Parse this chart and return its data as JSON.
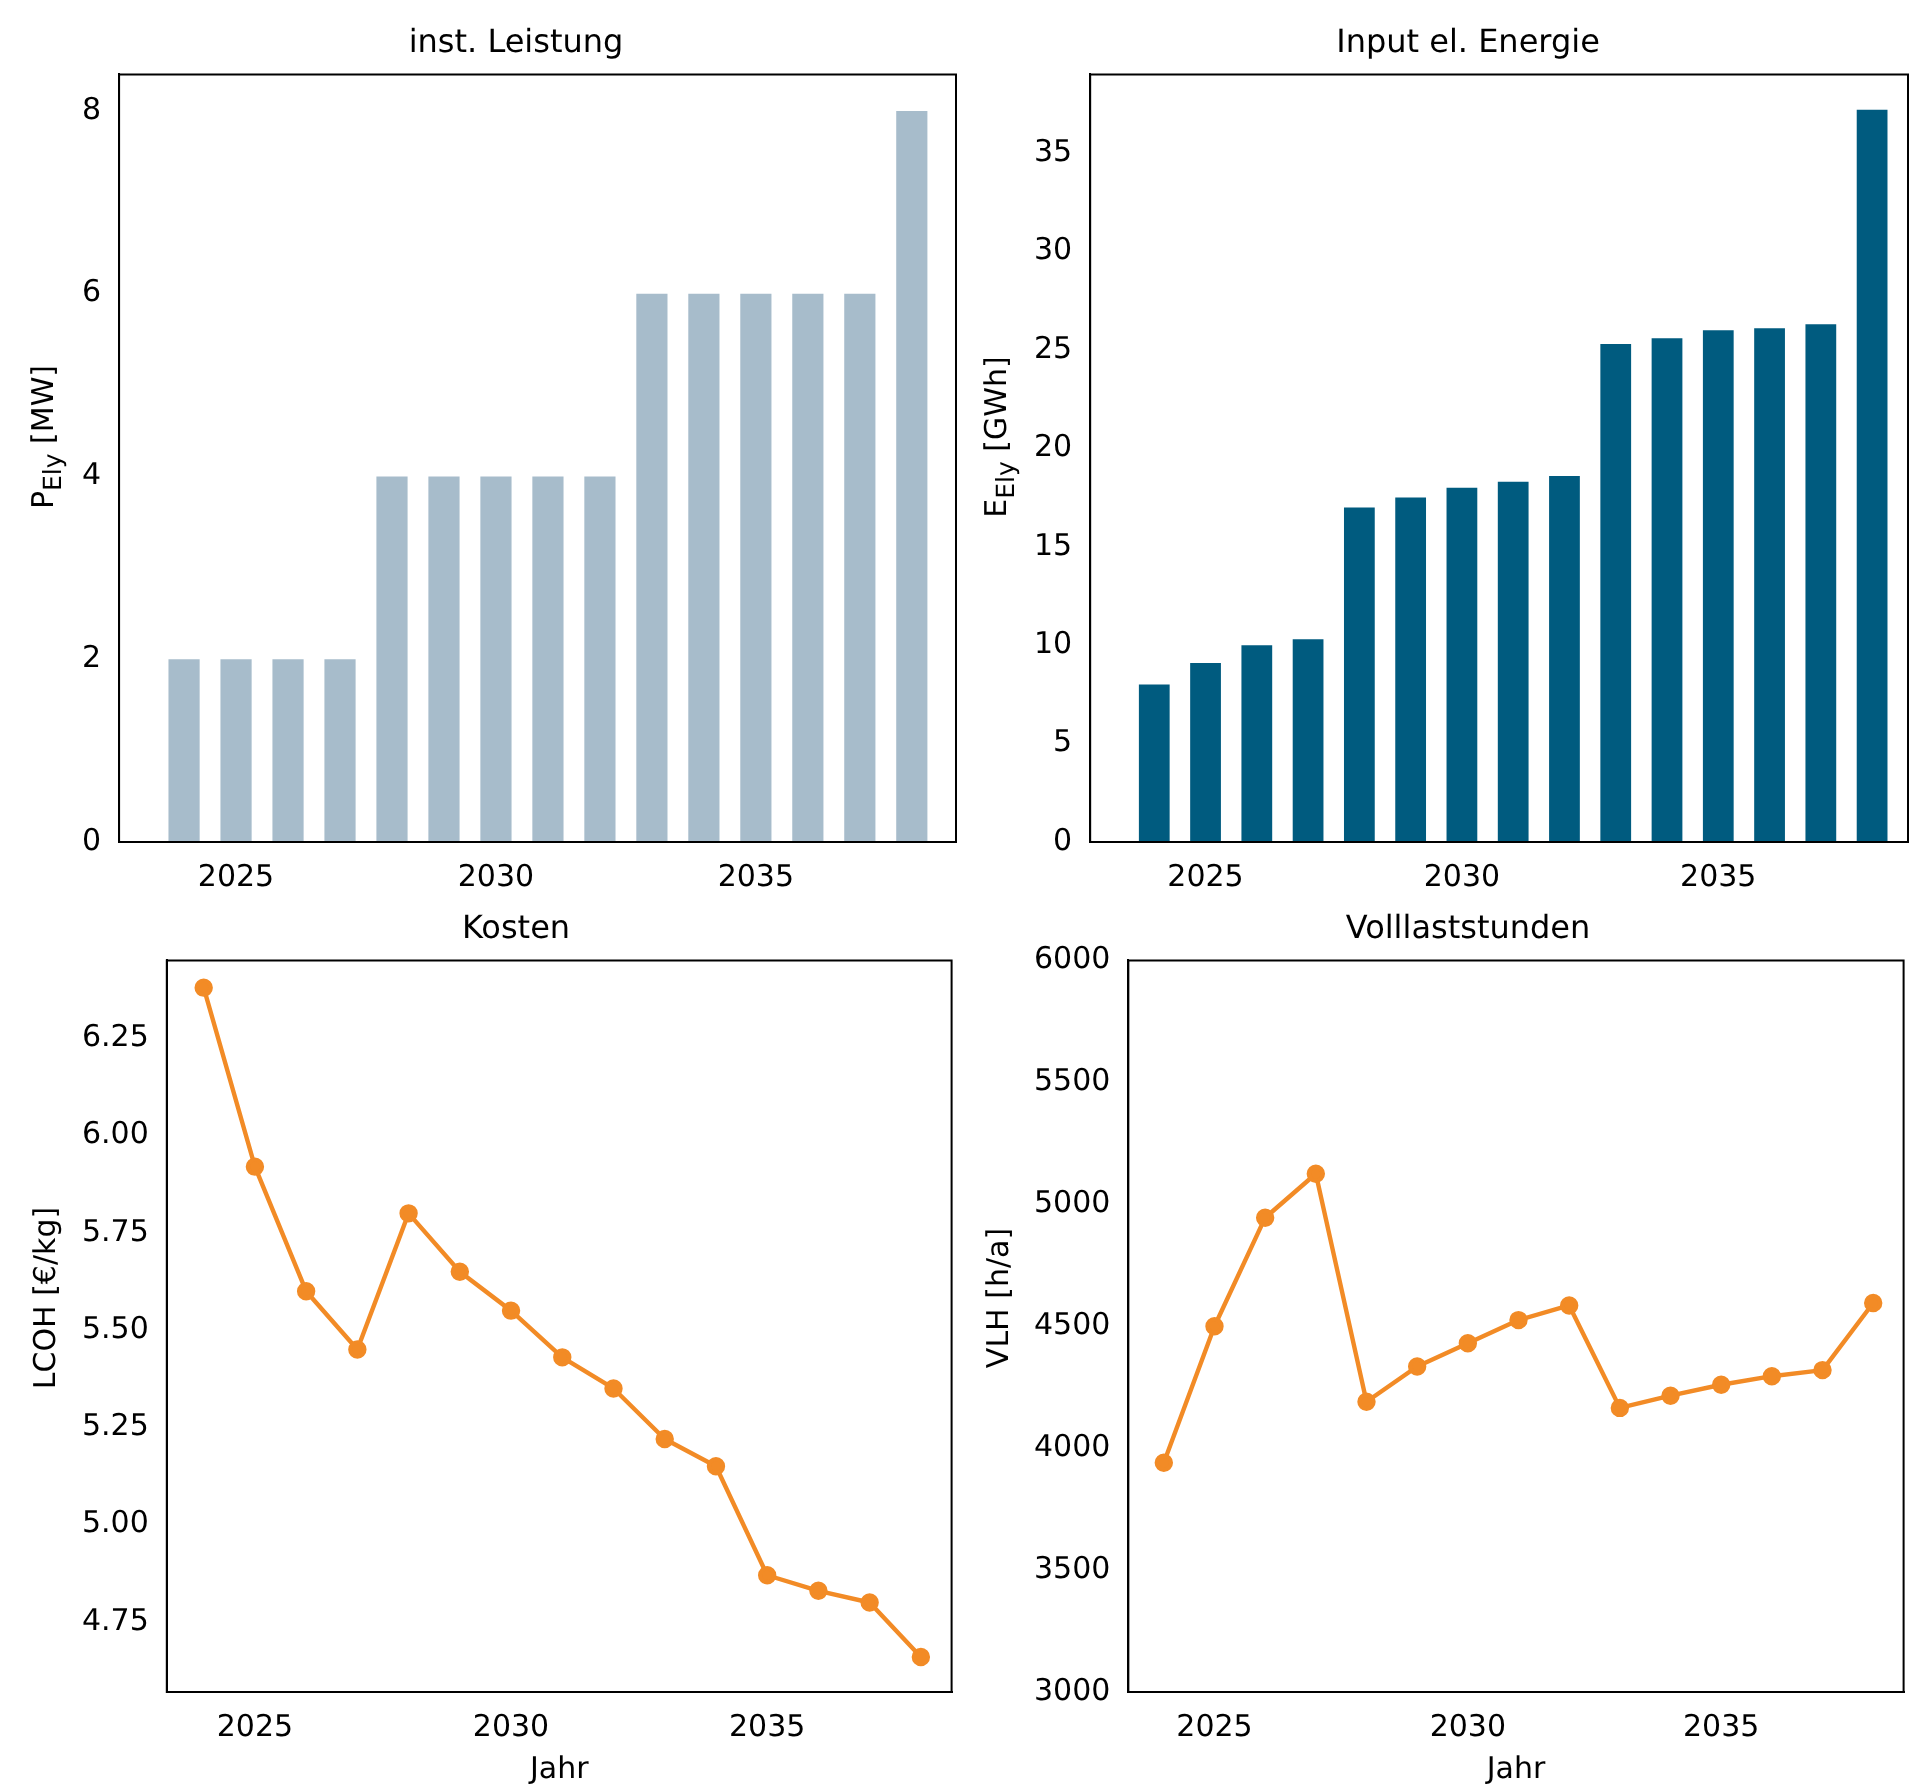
{
  "chart_data": [
    {
      "type": "bar",
      "title": "inst. Leistung",
      "ylabel": "P$_{Ely}$ [MW]",
      "x": [
        2024,
        2025,
        2026,
        2027,
        2028,
        2029,
        2030,
        2031,
        2032,
        2033,
        2034,
        2035,
        2036,
        2037,
        2038
      ],
      "values": [
        2,
        2,
        2,
        2,
        4,
        4,
        4,
        4,
        4,
        6,
        6,
        6,
        6,
        6,
        8
      ],
      "color": "#a7bccb",
      "xlim": [
        2022.75,
        2038.85
      ],
      "xticks": [
        2025,
        2030,
        2035
      ],
      "ylim": [
        0,
        8.4
      ],
      "yticks": [
        0,
        2,
        4,
        6,
        8
      ],
      "grid": false,
      "legend": false
    },
    {
      "type": "bar",
      "title": "Input el. Energie",
      "ylabel": "E$_{Ely}$ [GWh]",
      "x": [
        2024,
        2025,
        2026,
        2027,
        2028,
        2029,
        2030,
        2031,
        2032,
        2033,
        2034,
        2035,
        2036,
        2037,
        2038
      ],
      "values": [
        8.0,
        9.1,
        10.0,
        10.3,
        17.0,
        17.5,
        18.0,
        18.3,
        18.6,
        25.3,
        25.6,
        26.0,
        26.1,
        26.3,
        37.2
      ],
      "color": "#005b7f",
      "xlim": [
        2022.75,
        2038.7
      ],
      "xticks": [
        2025,
        2030,
        2035
      ],
      "ylim": [
        0,
        39
      ],
      "yticks": [
        0,
        5,
        10,
        15,
        20,
        25,
        30,
        35
      ],
      "grid": false,
      "legend": false
    },
    {
      "type": "line",
      "title": "Kosten",
      "xlabel": "Jahr",
      "ylabel": "LCOH [€/kg]",
      "x": [
        2024,
        2025,
        2026,
        2027,
        2028,
        2029,
        2030,
        2031,
        2032,
        2033,
        2034,
        2035,
        2036,
        2037,
        2038
      ],
      "values": [
        6.38,
        5.92,
        5.6,
        5.45,
        5.8,
        5.65,
        5.55,
        5.43,
        5.35,
        5.22,
        5.15,
        4.87,
        4.83,
        4.8,
        4.66
      ],
      "color": "#f28b26",
      "marker": "circle",
      "line_style": "solid",
      "xlim": [
        2023.28,
        2038.6
      ],
      "xticks": [
        2025,
        2030,
        2035
      ],
      "ylim": [
        4.57,
        6.45
      ],
      "yticks": [
        4.75,
        {
          "value": 5,
          "label": "5.00"
        },
        5.25,
        {
          "value": 5.5,
          "label": "5.50"
        },
        5.75,
        {
          "value": 6,
          "label": "6.00"
        },
        6.25
      ],
      "grid": false,
      "legend": false
    },
    {
      "type": "line",
      "title": "Volllaststunden",
      "xlabel": "Jahr",
      "ylabel": "VLH [h/a]",
      "x": [
        2024,
        2025,
        2026,
        2027,
        2028,
        2029,
        2030,
        2031,
        2032,
        2033,
        2034,
        2035,
        2036,
        2037,
        2038
      ],
      "values": [
        3940,
        4500,
        4945,
        5125,
        4190,
        4335,
        4430,
        4525,
        4585,
        4165,
        4215,
        4260,
        4295,
        4320,
        4595
      ],
      "color": "#f28b26",
      "marker": "circle",
      "line_style": "solid",
      "xlim": [
        2023.3,
        2038.6
      ],
      "xticks": [
        2025,
        2030,
        2035
      ],
      "ylim": [
        3000,
        6000
      ],
      "yticks": [
        3000,
        3500,
        4000,
        4500,
        5000,
        5500,
        6000
      ],
      "grid": false,
      "legend": false
    }
  ]
}
